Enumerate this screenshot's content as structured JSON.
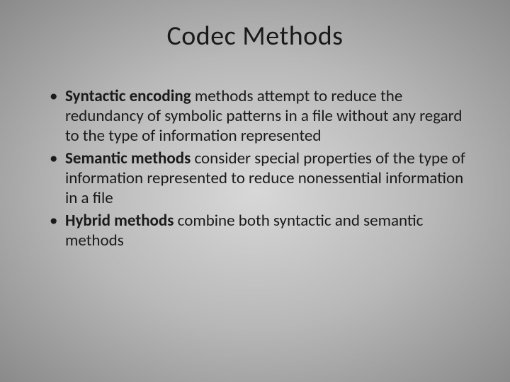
{
  "slide": {
    "title": "Codec Methods",
    "title_fontsize": 38,
    "title_color": "#1a1a1a",
    "background": {
      "type": "radial-gradient",
      "center_color": "#d8d8d8",
      "mid_color": "#b8b8b8",
      "edge_color": "#8a8a8a"
    },
    "body_fontsize": 23,
    "body_color": "#1a1a1a",
    "bullets": [
      {
        "bold_lead": "Syntactic encoding",
        "rest": " methods attempt to reduce the redundancy of symbolic patterns in a file without any regard to the type of information represented"
      },
      {
        "bold_lead": "Semantic methods",
        "rest": " consider special properties of the type of information represented to reduce nonessential information in a file"
      },
      {
        "bold_lead": "Hybrid methods",
        "rest": " combine both syntactic and semantic methods"
      }
    ]
  }
}
